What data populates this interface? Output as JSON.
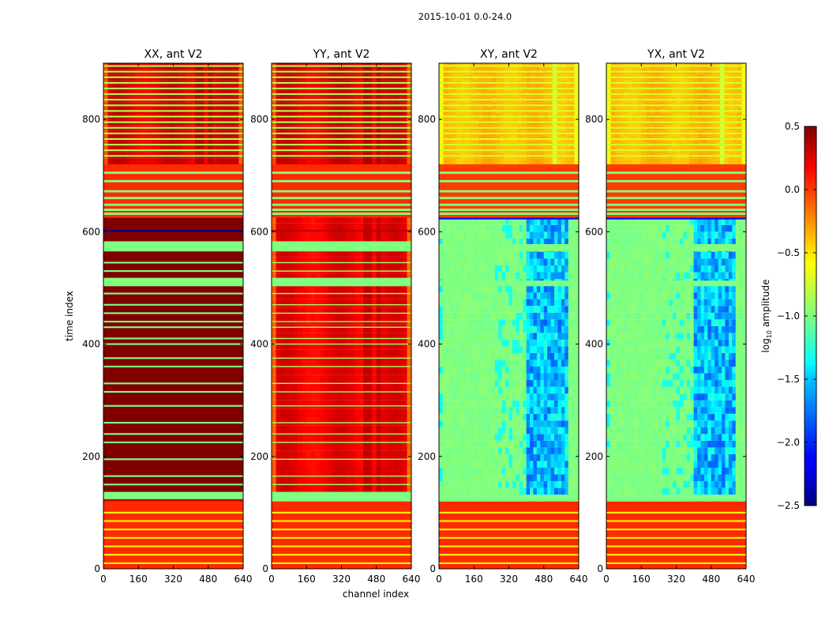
{
  "chart_data": {
    "type": "heatmap",
    "suptitle": "2015-10-01 0.0-24.0",
    "xlabel": "channel index",
    "ylabel": "time index",
    "xlim": [
      0,
      640
    ],
    "ylim": [
      0,
      900
    ],
    "xticks": [
      0,
      160,
      320,
      480,
      640
    ],
    "yticks": [
      0,
      200,
      400,
      600,
      800
    ],
    "panels": [
      {
        "title": "XX, ant V2",
        "kind": "parallel-xx"
      },
      {
        "title": "YY, ant V2",
        "kind": "parallel-yy"
      },
      {
        "title": "XY, ant V2",
        "kind": "cross"
      },
      {
        "title": "YX, ant V2",
        "kind": "cross"
      }
    ],
    "colorbar": {
      "label_prefix": "log",
      "label_sub": "10",
      "label_suffix": " amplitude",
      "range": [
        -2.5,
        0.5
      ],
      "ticks": [
        0.5,
        0.0,
        -0.5,
        -1.0,
        -1.5,
        -2.0,
        -2.5
      ],
      "tick_labels": [
        "0.5",
        "0.0",
        "−0.5",
        "−1.0",
        "−1.5",
        "−2.0",
        "−2.5"
      ],
      "colormap": "jet"
    },
    "rows": {
      "bottom_band": [
        0,
        120
      ],
      "bottom_band_value": 0.0,
      "gap_value": -1.0,
      "mid_section": [
        120,
        625
      ],
      "top_band": [
        625,
        720
      ],
      "top_smooth": [
        720,
        900
      ],
      "xx_mid_value": 0.5,
      "mid_gaps": [
        [
          120,
          137
        ],
        [
          503,
          518
        ],
        [
          565,
          583
        ]
      ],
      "line_rows_mid": [
        150,
        165,
        195,
        225,
        240,
        260,
        290,
        315,
        330,
        360,
        375,
        400,
        410,
        430,
        440,
        455,
        470,
        490,
        530,
        545
      ],
      "line_rows_bottom": [
        10,
        25,
        40,
        55,
        70,
        85,
        100
      ],
      "line_rows_top": [
        632,
        648,
        660,
        672,
        690,
        705
      ],
      "stripe_rows_upper": [
        735,
        745,
        755,
        765,
        775,
        785,
        795,
        805,
        815,
        825,
        835,
        845,
        855,
        865,
        875,
        885,
        895
      ]
    }
  }
}
